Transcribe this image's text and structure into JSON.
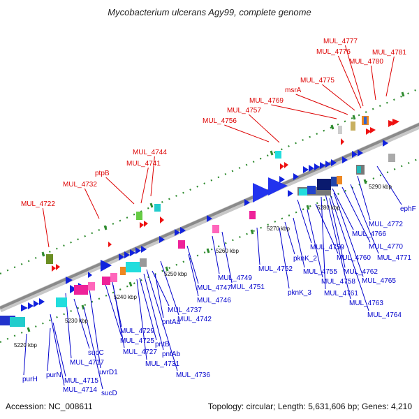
{
  "title": "Mycobacterium ulcerans Agy99, complete genome",
  "footer": {
    "accession": "Accession: NC_008611",
    "summary": "Topology: circular; Length: 5,631,606 bp; Genes: 4,210"
  },
  "colors": {
    "outer_labels": "#dd0000",
    "inner_labels": "#0000cc",
    "backbone": "#808080",
    "tick_marks": "#2e8b2e"
  },
  "kbp_ticks": [
    "5220 kbp",
    "5230 kbp",
    "5240 kbp",
    "5250 kbp",
    "5260 kbp",
    "5270 kbp",
    "5280 kbp",
    "5290 kbp"
  ],
  "outer_labels": [
    "MUL_4722",
    "MUL_4732",
    "ptpB",
    "MUL_4741",
    "MUL_4744",
    "MUL_4756",
    "MUL_4757",
    "MUL_4769",
    "msrA",
    "MUL_4775",
    "MUL_4776",
    "MUL_4777",
    "MUL_4780",
    "MUL_4781"
  ],
  "inner_labels": [
    "purH",
    "purN",
    "MUL_4715",
    "MUL_4714",
    "sucD",
    "sucC",
    "MUL_4717",
    "uvrD1",
    "MUL_4725",
    "MUL_4729",
    "MUL_4727",
    "MUL_4731",
    "pntB",
    "pntAb",
    "MUL_4736",
    "pntAa",
    "MUL_4737",
    "MUL_4742",
    "MUL_4746",
    "MUL_4747",
    "MUL_4749",
    "MUL_4751",
    "MUL_4752",
    "pknK_3",
    "pknK_2",
    "MUL_4755",
    "MUL_4758",
    "MUL_4759",
    "MUL_4760",
    "MUL_4761",
    "MUL_4762",
    "MUL_4763",
    "MUL_4764",
    "MUL_4765",
    "MUL_4766",
    "MUL_4770",
    "MUL_4771",
    "MUL_4772",
    "ephF"
  ]
}
